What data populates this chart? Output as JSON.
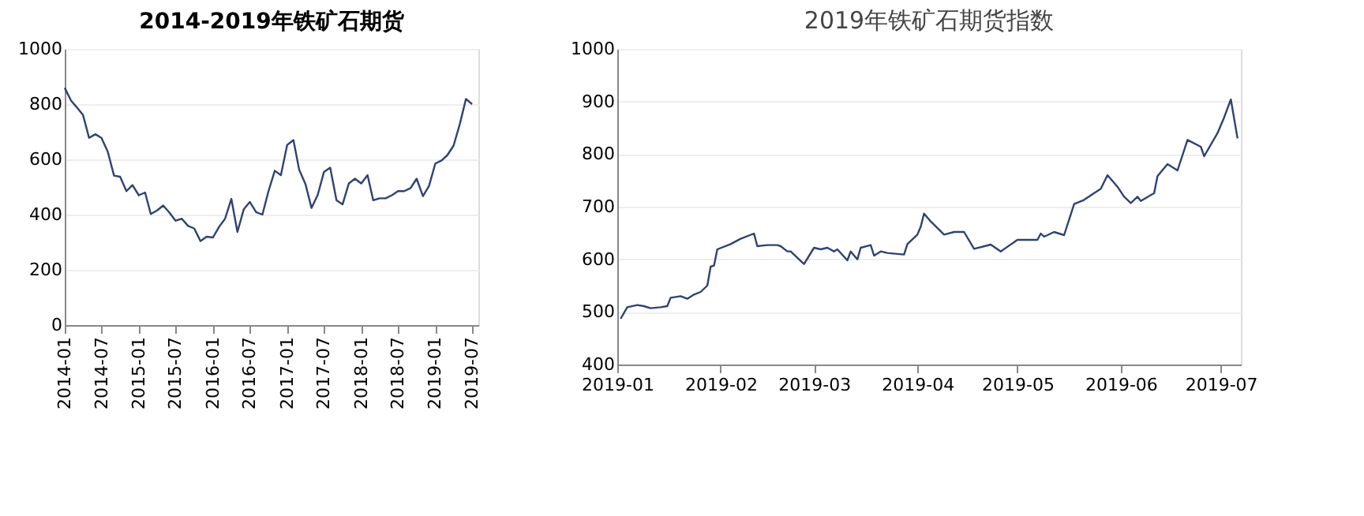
{
  "chart_data": [
    {
      "type": "line",
      "title": "2014-2019年铁矿石期货",
      "x": [
        "2014-01",
        "2014-02",
        "2014-03",
        "2014-04",
        "2014-05",
        "2014-06",
        "2014-07",
        "2014-08",
        "2014-09",
        "2014-10",
        "2014-11",
        "2014-12",
        "2015-01",
        "2015-02",
        "2015-03",
        "2015-04",
        "2015-05",
        "2015-06",
        "2015-07",
        "2015-08",
        "2015-09",
        "2015-10",
        "2015-11",
        "2015-12",
        "2016-01",
        "2016-02",
        "2016-03",
        "2016-04",
        "2016-05",
        "2016-06",
        "2016-07",
        "2016-08",
        "2016-09",
        "2016-10",
        "2016-11",
        "2016-12",
        "2017-01",
        "2017-02",
        "2017-03",
        "2017-04",
        "2017-05",
        "2017-06",
        "2017-07",
        "2017-08",
        "2017-09",
        "2017-10",
        "2017-11",
        "2017-12",
        "2018-01",
        "2018-02",
        "2018-03",
        "2018-04",
        "2018-05",
        "2018-06",
        "2018-07",
        "2018-08",
        "2018-09",
        "2018-10",
        "2018-11",
        "2018-12",
        "2019-01",
        "2019-02",
        "2019-03",
        "2019-04",
        "2019-05",
        "2019-06",
        "2019-07"
      ],
      "series": [
        {
          "color": "#2e4374",
          "values": [
            859,
            813,
            789,
            761,
            678,
            691,
            678,
            628,
            541,
            537,
            485,
            507,
            470,
            480,
            402,
            415,
            433,
            407,
            378,
            385,
            359,
            350,
            304,
            320,
            317,
            356,
            385,
            457,
            337,
            419,
            446,
            409,
            400,
            485,
            559,
            543,
            652,
            670,
            563,
            511,
            424,
            472,
            554,
            570,
            452,
            437,
            513,
            530,
            513,
            543,
            452,
            459,
            459,
            470,
            485,
            485,
            496,
            530,
            467,
            504,
            585,
            596,
            615,
            650,
            726,
            819,
            800
          ]
        }
      ],
      "xlim": [
        "2014-01",
        "2019-08"
      ],
      "xticks": [
        "2014-01",
        "2014-07",
        "2015-01",
        "2015-07",
        "2016-01",
        "2016-07",
        "2017-01",
        "2017-07",
        "2018-01",
        "2018-07",
        "2019-01",
        "2019-07"
      ],
      "ylim": [
        0,
        1000
      ],
      "yticks": [
        0,
        200,
        400,
        600,
        800,
        1000
      ],
      "grid": "y",
      "marker": "none",
      "line_style": "solid"
    },
    {
      "type": "line",
      "title": "2019年铁矿石期货指数",
      "x": [
        "2019-01-02",
        "2019-01-04",
        "2019-01-07",
        "2019-01-09",
        "2019-01-11",
        "2019-01-14",
        "2019-01-16",
        "2019-01-17",
        "2019-01-20",
        "2019-01-22",
        "2019-01-24",
        "2019-01-26",
        "2019-01-28",
        "2019-01-29",
        "2019-01-30",
        "2019-01-31",
        "2019-02-04",
        "2019-02-07",
        "2019-02-11",
        "2019-02-12",
        "2019-02-15",
        "2019-02-18",
        "2019-02-19",
        "2019-02-21",
        "2019-02-22",
        "2019-02-26",
        "2019-03-01",
        "2019-03-03",
        "2019-03-05",
        "2019-03-07",
        "2019-03-08",
        "2019-03-11",
        "2019-03-12",
        "2019-03-14",
        "2019-03-15",
        "2019-03-18",
        "2019-03-19",
        "2019-03-21",
        "2019-03-23",
        "2019-03-28",
        "2019-03-29",
        "2019-04-01",
        "2019-04-02",
        "2019-04-03",
        "2019-04-05",
        "2019-04-09",
        "2019-04-12",
        "2019-04-15",
        "2019-04-18",
        "2019-04-23",
        "2019-04-26",
        "2019-05-01",
        "2019-05-07",
        "2019-05-08",
        "2019-05-09",
        "2019-05-12",
        "2019-05-15",
        "2019-05-18",
        "2019-05-21",
        "2019-05-24",
        "2019-05-26",
        "2019-05-28",
        "2019-05-31",
        "2019-06-02",
        "2019-06-04",
        "2019-06-06",
        "2019-06-07",
        "2019-06-11",
        "2019-06-12",
        "2019-06-15",
        "2019-06-18",
        "2019-06-21",
        "2019-06-25",
        "2019-06-26",
        "2019-06-30",
        "2019-07-02",
        "2019-07-04",
        "2019-07-06"
      ],
      "series": [
        {
          "color": "#2e4374",
          "values": [
            487,
            509,
            513,
            511,
            507,
            509,
            511,
            527,
            530,
            525,
            533,
            538,
            550,
            586,
            588,
            619,
            629,
            639,
            649,
            625,
            627,
            627,
            625,
            615,
            615,
            591,
            622,
            619,
            622,
            615,
            619,
            598,
            615,
            600,
            622,
            627,
            607,
            615,
            612,
            609,
            629,
            647,
            662,
            687,
            672,
            647,
            652,
            652,
            620,
            628,
            615,
            637,
            637,
            649,
            643,
            652,
            646,
            705,
            713,
            726,
            734,
            760,
            738,
            719,
            707,
            719,
            711,
            726,
            758,
            781,
            769,
            827,
            814,
            796,
            840,
            870,
            904,
            830
          ]
        }
      ],
      "xlim": [
        "2019-01-01",
        "2019-07-07"
      ],
      "xticks": [
        "2019-01",
        "2019-02",
        "2019-03",
        "2019-04",
        "2019-05",
        "2019-06",
        "2019-07"
      ],
      "ylim": [
        400,
        1000
      ],
      "yticks": [
        400,
        500,
        600,
        700,
        800,
        900,
        1000
      ],
      "grid": "y",
      "marker": "none",
      "line_style": "solid"
    }
  ]
}
